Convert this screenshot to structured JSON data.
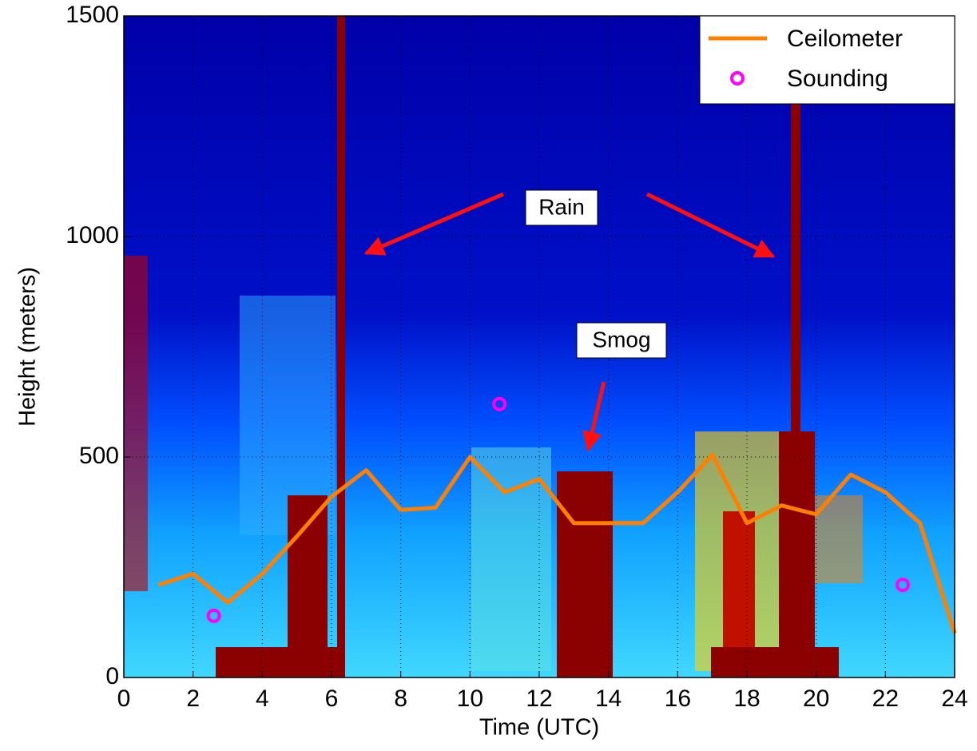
{
  "chart_data": {
    "type": "line",
    "xlabel": "Time (UTC)",
    "ylabel": "Height (meters)",
    "xlim": [
      0,
      24
    ],
    "ylim": [
      0,
      1500
    ],
    "xticks": [
      0,
      2,
      4,
      6,
      8,
      10,
      12,
      14,
      16,
      18,
      20,
      22,
      24
    ],
    "yticks": [
      0,
      500,
      1000,
      1500
    ],
    "grid": true,
    "legend": "upper right",
    "annotations": [
      "Rain",
      "Smog"
    ],
    "series": [
      {
        "name": "Ceilometer",
        "type": "line",
        "color": "#ff8000",
        "x": [
          1,
          2,
          3,
          4,
          5,
          6,
          7,
          8,
          9,
          10,
          11,
          12,
          13,
          14,
          15,
          16,
          17,
          18,
          19,
          20,
          21,
          22,
          23,
          24
        ],
        "y": [
          210,
          235,
          170,
          235,
          320,
          410,
          470,
          380,
          385,
          500,
          420,
          450,
          350,
          350,
          350,
          420,
          505,
          350,
          390,
          370,
          460,
          420,
          350,
          100
        ]
      },
      {
        "name": "Sounding",
        "type": "scatter",
        "color": "#ff00ff",
        "x": [
          2.6,
          10.85,
          22.5
        ],
        "y": [
          140,
          620,
          210
        ]
      }
    ]
  }
}
